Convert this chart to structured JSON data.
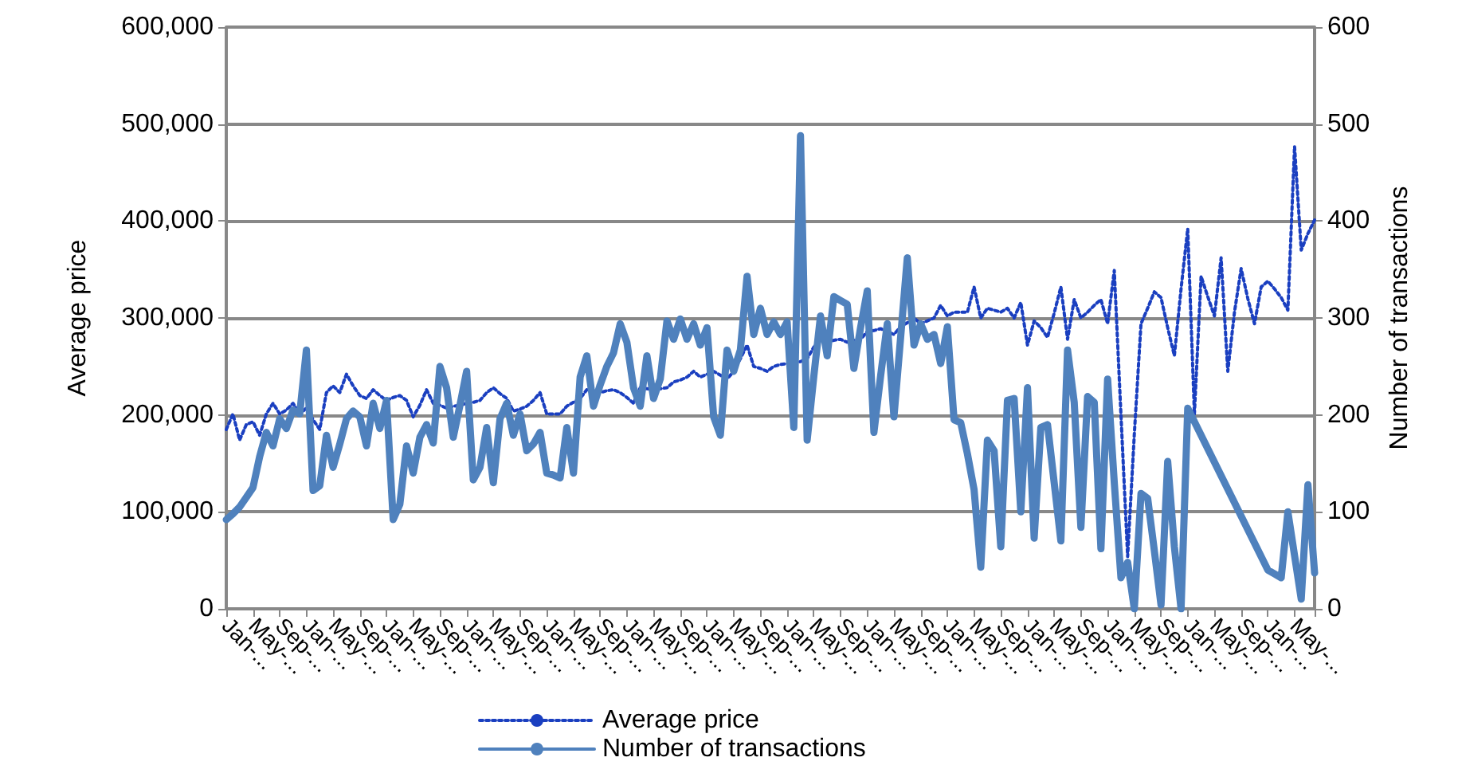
{
  "chart_data": {
    "type": "line",
    "categories": [
      "Jan-...",
      null,
      null,
      null,
      "May-...",
      null,
      null,
      null,
      "Sep-...",
      null,
      null,
      null,
      "Jan-...",
      null,
      null,
      null,
      "May-...",
      null,
      null,
      null,
      "Sep-...",
      null,
      null,
      null,
      "Jan-...",
      null,
      null,
      null,
      "May-...",
      null,
      null,
      null,
      "Sep-...",
      null,
      null,
      null,
      "Jan-...",
      null,
      null,
      null,
      "May-...",
      null,
      null,
      null,
      "Sep-...",
      null,
      null,
      null,
      "Jan-...",
      null,
      null,
      null,
      "May-...",
      null,
      null,
      null,
      "Sep-...",
      null,
      null,
      null,
      "Jan-...",
      null,
      null,
      null,
      "May-...",
      null,
      null,
      null,
      "Sep-...",
      null,
      null,
      null,
      "Jan-...",
      null,
      null,
      null,
      "May-...",
      null,
      null,
      null,
      "Sep-...",
      null,
      null,
      null,
      "Jan-...",
      null,
      null,
      null,
      "May-...",
      null,
      null,
      null,
      "Sep-...",
      null,
      null,
      null,
      "Jan-...",
      null,
      null,
      null,
      "May-...",
      null,
      null,
      null,
      "Sep-...",
      null,
      null,
      null,
      "Jan-...",
      null,
      null,
      null,
      "May-...",
      null,
      null,
      null,
      "Sep-...",
      null,
      null,
      null,
      "Jan-...",
      null,
      null,
      null,
      "May-...",
      null,
      null,
      null,
      "Sep-...",
      null,
      null,
      null,
      "Jan-...",
      null,
      null,
      null,
      "May-...",
      null,
      null,
      null,
      "Sep-...",
      null,
      null,
      null,
      "Jan-...",
      null,
      null,
      null,
      "May-...",
      null,
      null,
      null,
      "Sep-...",
      null,
      null,
      null,
      "Jan-...",
      null,
      null,
      null,
      "May-...",
      null,
      null,
      null
    ],
    "series": [
      {
        "name": "Average price",
        "color": "#1a3fc0",
        "line_style": "dotted",
        "values": [
          185000,
          201000,
          174000,
          190000,
          193000,
          179000,
          201000,
          212000,
          201000,
          205000,
          212000,
          201000,
          207000,
          195000,
          185000,
          223000,
          230000,
          223000,
          242000,
          230000,
          220000,
          217000,
          226000,
          220000,
          215000,
          218000,
          220000,
          215000,
          198000,
          210000,
          226000,
          212000,
          210000,
          207000,
          209000,
          210000,
          212000,
          213000,
          215000,
          223000,
          228000,
          222000,
          217000,
          204000,
          206000,
          209000,
          215000,
          223000,
          201000,
          201000,
          201000,
          209000,
          213000,
          217000,
          226000,
          225000,
          223000,
          225000,
          226000,
          223000,
          218000,
          212000,
          228000,
          227000,
          226000,
          227000,
          228000,
          234000,
          236000,
          239000,
          245000,
          239000,
          242000,
          245000,
          241000,
          237000,
          245000,
          258000,
          272000,
          250000,
          248000,
          245000,
          250000,
          252000,
          253000,
          253000,
          255000,
          258000,
          270000,
          278000,
          275000,
          277000,
          278000,
          275000,
          277000,
          278000,
          286000,
          287000,
          289000,
          286000,
          283000,
          291000,
          295000,
          300000,
          294000,
          297000,
          300000,
          313000,
          302000,
          306000,
          306000,
          306000,
          332000,
          300000,
          310000,
          308000,
          306000,
          310000,
          300000,
          316000,
          272000,
          297000,
          290000,
          280000,
          305000,
          332000,
          278000,
          319000,
          300000,
          306000,
          313000,
          319000,
          294000,
          349000,
          200000,
          54000,
          180000,
          294000,
          310000,
          327000,
          321000,
          290000,
          261000,
          330000,
          392000,
          201000,
          343000,
          322000,
          302000,
          362000,
          245000,
          306000,
          351000,
          320000,
          294000,
          332000,
          338000,
          330000,
          321000,
          308000,
          477000,
          370000,
          387000,
          401000
        ]
      },
      {
        "name": "Number of transactions",
        "color": "#4f81bd",
        "line_style": "solid",
        "axis": "y2",
        "values": [
          92,
          98,
          105,
          115,
          125,
          157,
          182,
          168,
          196,
          186,
          205,
          201,
          267,
          122,
          127,
          179,
          146,
          170,
          196,
          204,
          198,
          168,
          212,
          186,
          215,
          92,
          108,
          168,
          140,
          177,
          190,
          171,
          250,
          228,
          177,
          210,
          245,
          133,
          146,
          187,
          130,
          196,
          212,
          179,
          201,
          163,
          170,
          182,
          140,
          138,
          135,
          187,
          140,
          239,
          261,
          209,
          231,
          250,
          264,
          294,
          275,
          228,
          209,
          261,
          217,
          237,
          297,
          278,
          299,
          278,
          294,
          272,
          290,
          198,
          179,
          267,
          245,
          267,
          343,
          283,
          310,
          283,
          296,
          283,
          296,
          187,
          488,
          174,
          240,
          302,
          261,
          322,
          318,
          314,
          248,
          290,
          328,
          182,
          240,
          294,
          198,
          280,
          362,
          272,
          294,
          278,
          283,
          253,
          291,
          195,
          192,
          160,
          123,
          43,
          174,
          163,
          64,
          215,
          217,
          100,
          228,
          73,
          187,
          190,
          130,
          70,
          267,
          213,
          84,
          219,
          213,
          62,
          237,
          130,
          32,
          48,
          0,
          119,
          114,
          60,
          4,
          152,
          64,
          0,
          207,
          null,
          null,
          null,
          null,
          null,
          null,
          null,
          null,
          null,
          null,
          null,
          40,
          36,
          32,
          100,
          55,
          10,
          128,
          37
        ]
      }
    ],
    "ylabel": "Average price",
    "y2label": "Number of transactions",
    "ylim": [
      0,
      600000
    ],
    "yticks": [
      {
        "value": 0,
        "label": "0"
      },
      {
        "value": 100000,
        "label": "100,000"
      },
      {
        "value": 200000,
        "label": "200,000"
      },
      {
        "value": 300000,
        "label": "300,000"
      },
      {
        "value": 400000,
        "label": "400,000"
      },
      {
        "value": 500000,
        "label": "500,000"
      },
      {
        "value": 600000,
        "label": "600,000"
      }
    ],
    "y2lim": [
      0,
      600
    ],
    "y2ticks": [
      0,
      100,
      200,
      300,
      400,
      500,
      600
    ],
    "grid": "y",
    "legend": "bottom",
    "marker": "none"
  }
}
